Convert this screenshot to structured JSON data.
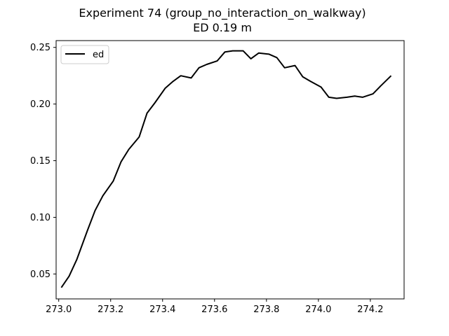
{
  "chart_data": {
    "type": "line",
    "title": "Experiment 74 (group_no_interaction_on_walkway)",
    "subtitle": "ED 0.19 m",
    "xlabel": "",
    "ylabel": "",
    "xlim": [
      272.99,
      274.33
    ],
    "ylim": [
      0.028,
      0.256
    ],
    "x_ticks": [
      273.0,
      273.2,
      273.4,
      273.6,
      273.8,
      274.0,
      274.2
    ],
    "x_tick_labels": [
      "273.0",
      "273.2",
      "273.4",
      "273.6",
      "273.8",
      "274.0",
      "274.2"
    ],
    "y_ticks": [
      0.05,
      0.1,
      0.15,
      0.2,
      0.25
    ],
    "y_tick_labels": [
      "0.05",
      "0.10",
      "0.15",
      "0.20",
      "0.25"
    ],
    "grid": false,
    "legend_position": "top-left",
    "series": [
      {
        "name": "ed",
        "color": "#000000",
        "x": [
          273.01,
          273.04,
          273.07,
          273.11,
          273.14,
          273.17,
          273.21,
          273.24,
          273.27,
          273.31,
          273.34,
          273.37,
          273.41,
          273.44,
          273.47,
          273.51,
          273.54,
          273.57,
          273.61,
          273.64,
          273.67,
          273.71,
          273.74,
          273.77,
          273.81,
          273.84,
          273.87,
          273.91,
          273.94,
          273.97,
          274.01,
          274.04,
          274.07,
          274.11,
          274.14,
          274.17,
          274.21,
          274.24,
          274.28
        ],
        "y": [
          0.038,
          0.048,
          0.063,
          0.088,
          0.106,
          0.119,
          0.132,
          0.149,
          0.16,
          0.171,
          0.192,
          0.201,
          0.214,
          0.22,
          0.225,
          0.223,
          0.232,
          0.235,
          0.238,
          0.246,
          0.247,
          0.247,
          0.24,
          0.245,
          0.244,
          0.241,
          0.232,
          0.234,
          0.224,
          0.22,
          0.215,
          0.206,
          0.205,
          0.206,
          0.207,
          0.206,
          0.209,
          0.216,
          0.225
        ]
      }
    ]
  }
}
